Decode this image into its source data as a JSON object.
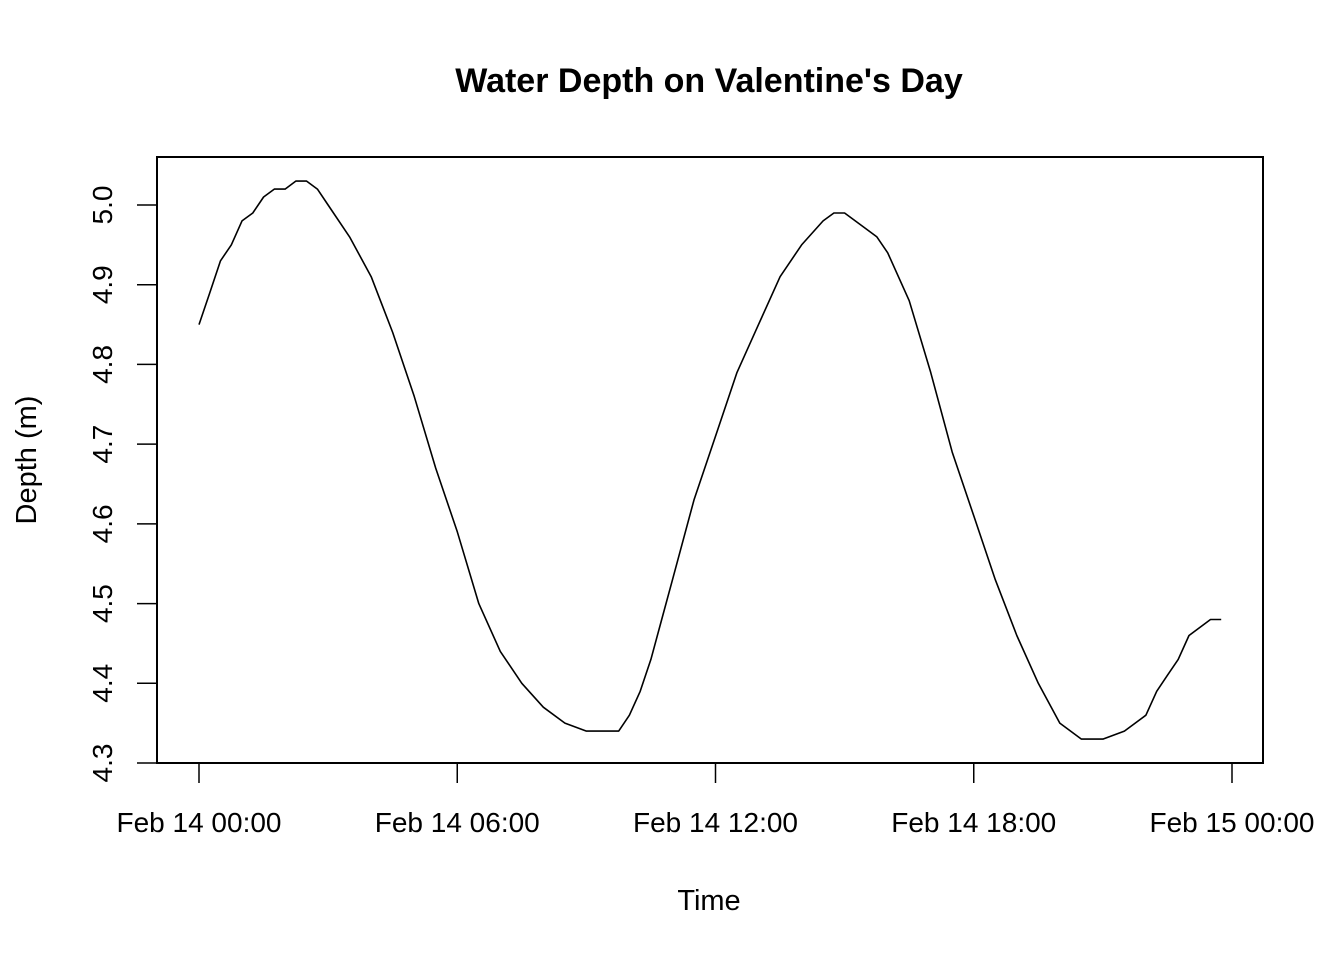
{
  "chart_data": {
    "type": "line",
    "title": "Water Depth on Valentine's Day",
    "xlabel": "Time",
    "ylabel": "Depth (m)",
    "xlim": [
      "2024-02-14 00:00",
      "2024-02-15 00:00"
    ],
    "ylim": [
      4.3,
      5.0
    ],
    "x_ticks": [
      "Feb 14 00:00",
      "Feb 14 06:00",
      "Feb 14 12:00",
      "Feb 14 18:00",
      "Feb 15 00:00"
    ],
    "y_ticks": [
      "4.3",
      "4.4",
      "4.5",
      "4.6",
      "4.7",
      "4.8",
      "4.9",
      "5.0"
    ],
    "grid": false,
    "series": [
      {
        "x": [
          "Feb 14 00:00",
          "Feb 14 00:15",
          "Feb 14 00:30",
          "Feb 14 00:45",
          "Feb 14 01:00",
          "Feb 14 01:15",
          "Feb 14 01:30",
          "Feb 14 01:45",
          "Feb 14 02:00",
          "Feb 14 02:15",
          "Feb 14 02:30",
          "Feb 14 02:45",
          "Feb 14 03:00",
          "Feb 14 03:30",
          "Feb 14 04:00",
          "Feb 14 04:30",
          "Feb 14 05:00",
          "Feb 14 05:30",
          "Feb 14 06:00",
          "Feb 14 06:30",
          "Feb 14 07:00",
          "Feb 14 07:30",
          "Feb 14 08:00",
          "Feb 14 08:30",
          "Feb 14 09:00",
          "Feb 14 09:30",
          "Feb 14 09:45",
          "Feb 14 10:00",
          "Feb 14 10:15",
          "Feb 14 10:30",
          "Feb 14 10:45",
          "Feb 14 11:00",
          "Feb 14 11:30",
          "Feb 14 12:00",
          "Feb 14 12:30",
          "Feb 14 13:00",
          "Feb 14 13:30",
          "Feb 14 14:00",
          "Feb 14 14:30",
          "Feb 14 14:45",
          "Feb 14 15:00",
          "Feb 14 15:30",
          "Feb 14 15:45",
          "Feb 14 16:00",
          "Feb 14 16:30",
          "Feb 14 17:00",
          "Feb 14 17:30",
          "Feb 14 18:00",
          "Feb 14 18:30",
          "Feb 14 19:00",
          "Feb 14 19:30",
          "Feb 14 20:00",
          "Feb 14 20:30",
          "Feb 14 21:00",
          "Feb 14 21:30",
          "Feb 14 22:00",
          "Feb 14 22:15",
          "Feb 14 22:30",
          "Feb 14 22:45",
          "Feb 14 23:00",
          "Feb 14 23:30",
          "Feb 14 23:45"
        ],
        "y": [
          4.85,
          4.89,
          4.93,
          4.95,
          4.98,
          4.99,
          5.01,
          5.02,
          5.02,
          5.03,
          5.03,
          5.02,
          5.0,
          4.96,
          4.91,
          4.84,
          4.76,
          4.67,
          4.59,
          4.5,
          4.44,
          4.4,
          4.37,
          4.35,
          4.34,
          4.34,
          4.34,
          4.36,
          4.39,
          4.43,
          4.48,
          4.53,
          4.63,
          4.71,
          4.79,
          4.85,
          4.91,
          4.95,
          4.98,
          4.99,
          4.99,
          4.97,
          4.96,
          4.94,
          4.88,
          4.79,
          4.69,
          4.61,
          4.53,
          4.46,
          4.4,
          4.35,
          4.33,
          4.33,
          4.34,
          4.36,
          4.39,
          4.41,
          4.43,
          4.46,
          4.48,
          4.48
        ]
      }
    ]
  }
}
